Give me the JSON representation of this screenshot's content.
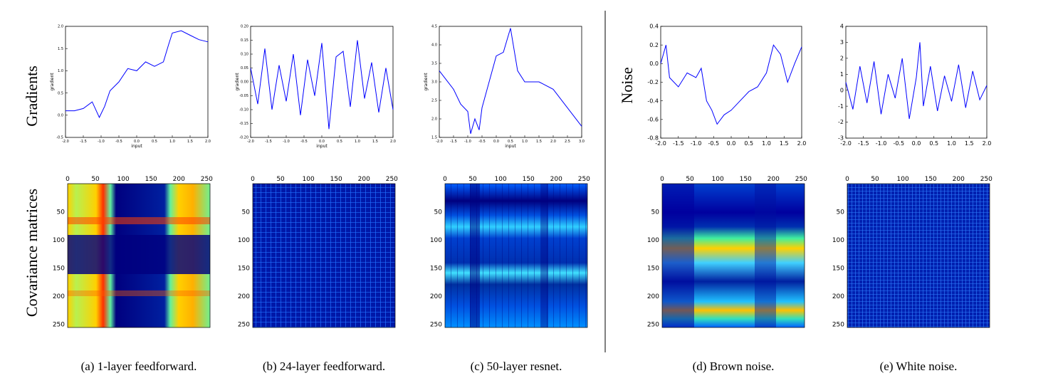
{
  "row_labels": {
    "top_left": "Gradients",
    "bottom_left": "Covariance matrices",
    "top_right": "Noise"
  },
  "captions": [
    "(a) 1-layer feedforward.",
    "(b) 24-layer feedforward.",
    "(c) 50-layer resnet.",
    "(d) Brown noise.",
    "(e) White noise."
  ],
  "colors": {
    "line": "#0000ff",
    "heat_low": "#00007f",
    "heat_high": "#ff0000"
  },
  "chart_data": [
    {
      "type": "line",
      "panel": "a-top",
      "xlabel": "input",
      "ylabel": "gradient",
      "xlim": [
        -2.0,
        2.0
      ],
      "ylim": [
        -0.5,
        2.0
      ],
      "xticks": [
        "-2.0",
        "-1.5",
        "-1.0",
        "-0.5",
        "0.0",
        "0.5",
        "1.0",
        "1.5",
        "2.0"
      ],
      "yticks": [
        "-0.5",
        "0.0",
        "0.5",
        "1.0",
        "1.5",
        "2.0"
      ],
      "x": [
        -2.0,
        -1.75,
        -1.5,
        -1.25,
        -1.05,
        -0.9,
        -0.75,
        -0.5,
        -0.25,
        0.0,
        0.25,
        0.5,
        0.75,
        0.9,
        1.0,
        1.25,
        1.5,
        1.75,
        2.0
      ],
      "y": [
        0.1,
        0.1,
        0.15,
        0.3,
        -0.05,
        0.2,
        0.55,
        0.75,
        1.05,
        1.0,
        1.2,
        1.1,
        1.2,
        1.6,
        1.85,
        1.9,
        1.8,
        1.7,
        1.65
      ]
    },
    {
      "type": "line",
      "panel": "b-top",
      "xlabel": "input",
      "ylabel": "gradient",
      "xlim": [
        -2.0,
        2.0
      ],
      "ylim": [
        -0.2,
        0.2
      ],
      "xticks": [
        "-2.0",
        "-1.5",
        "-1.0",
        "-0.5",
        "0.0",
        "0.5",
        "1.0",
        "1.5",
        "2.0"
      ],
      "yticks": [
        "-0.20",
        "-0.15",
        "-0.10",
        "-0.05",
        "0.00",
        "0.05",
        "0.10",
        "0.15",
        "0.20"
      ],
      "x": [
        -2.0,
        -1.8,
        -1.6,
        -1.4,
        -1.2,
        -1.0,
        -0.8,
        -0.6,
        -0.4,
        -0.2,
        0.0,
        0.2,
        0.4,
        0.6,
        0.8,
        1.0,
        1.2,
        1.4,
        1.6,
        1.8,
        2.0
      ],
      "y": [
        0.05,
        -0.08,
        0.12,
        -0.1,
        0.06,
        -0.07,
        0.1,
        -0.12,
        0.08,
        -0.05,
        0.14,
        -0.17,
        0.09,
        0.11,
        -0.09,
        0.15,
        -0.06,
        0.07,
        -0.11,
        0.05,
        -0.1
      ]
    },
    {
      "type": "line",
      "panel": "c-top",
      "xlabel": "input",
      "ylabel": "gradient",
      "xlim": [
        -2.0,
        3.0
      ],
      "ylim": [
        1.5,
        4.5
      ],
      "xticks": [
        "-2.0",
        "-1.5",
        "-1.0",
        "-0.5",
        "0.0",
        "0.5",
        "1.0",
        "1.5",
        "2.0",
        "2.5",
        "3.0"
      ],
      "yticks": [
        "1.5",
        "2.0",
        "2.5",
        "3.0",
        "3.5",
        "4.0",
        "4.5"
      ],
      "x": [
        -2.0,
        -1.5,
        -1.25,
        -1.0,
        -0.9,
        -0.75,
        -0.6,
        -0.5,
        -0.25,
        0.0,
        0.25,
        0.5,
        0.75,
        1.0,
        1.5,
        2.0,
        2.5,
        3.0
      ],
      "y": [
        3.3,
        2.8,
        2.4,
        2.2,
        1.6,
        2.0,
        1.7,
        2.3,
        3.0,
        3.7,
        3.8,
        4.45,
        3.3,
        3.0,
        3.0,
        2.8,
        2.3,
        1.8
      ]
    },
    {
      "type": "line",
      "panel": "d-top",
      "xlim": [
        -2.0,
        2.0
      ],
      "ylim": [
        -0.8,
        0.4
      ],
      "xticks": [
        "-2.0",
        "-1.5",
        "-1.0",
        "-0.5",
        "0.0",
        "0.5",
        "1.0",
        "1.5",
        "2.0"
      ],
      "yticks": [
        "-0.8",
        "-0.6",
        "-0.4",
        "-0.2",
        "0.0",
        "0.2",
        "0.4"
      ],
      "x": [
        -2.0,
        -1.85,
        -1.75,
        -1.5,
        -1.25,
        -1.0,
        -0.85,
        -0.7,
        -0.55,
        -0.4,
        -0.2,
        0.0,
        0.25,
        0.5,
        0.75,
        1.0,
        1.2,
        1.4,
        1.6,
        1.8,
        2.0
      ],
      "y": [
        0.0,
        0.2,
        -0.15,
        -0.25,
        -0.1,
        -0.15,
        -0.05,
        -0.4,
        -0.5,
        -0.65,
        -0.55,
        -0.5,
        -0.4,
        -0.3,
        -0.25,
        -0.1,
        0.2,
        0.1,
        -0.2,
        0.0,
        0.18
      ]
    },
    {
      "type": "line",
      "panel": "e-top",
      "xlim": [
        -2.0,
        2.0
      ],
      "ylim": [
        -3,
        4
      ],
      "xticks": [
        "-2.0",
        "-1.5",
        "-1.0",
        "-0.5",
        "0.0",
        "0.5",
        "1.0",
        "1.5",
        "2.0"
      ],
      "yticks": [
        "-3",
        "-2",
        "-1",
        "0",
        "1",
        "2",
        "3",
        "4"
      ],
      "x": [
        -2.0,
        -1.8,
        -1.6,
        -1.4,
        -1.2,
        -1.0,
        -0.8,
        -0.6,
        -0.4,
        -0.2,
        0.0,
        0.1,
        0.2,
        0.4,
        0.6,
        0.8,
        1.0,
        1.2,
        1.4,
        1.6,
        1.8,
        2.0
      ],
      "y": [
        0.5,
        -1.2,
        1.5,
        -0.8,
        1.8,
        -1.5,
        1.0,
        -0.5,
        2.0,
        -1.8,
        0.8,
        3.0,
        -1.0,
        1.5,
        -1.3,
        0.9,
        -0.7,
        1.6,
        -1.1,
        1.2,
        -0.6,
        0.3
      ]
    },
    {
      "type": "heatmap",
      "panel": "a-bottom",
      "xticks": [
        "0",
        "50",
        "100",
        "150",
        "200",
        "250"
      ],
      "yticks": [
        "50",
        "100",
        "150",
        "200",
        "250"
      ]
    },
    {
      "type": "heatmap",
      "panel": "b-bottom",
      "xticks": [
        "0",
        "50",
        "100",
        "150",
        "200",
        "250"
      ],
      "yticks": [
        "50",
        "100",
        "150",
        "200",
        "250"
      ]
    },
    {
      "type": "heatmap",
      "panel": "c-bottom",
      "xticks": [
        "0",
        "50",
        "100",
        "150",
        "200",
        "250"
      ],
      "yticks": [
        "50",
        "100",
        "150",
        "200",
        "250"
      ]
    },
    {
      "type": "heatmap",
      "panel": "d-bottom",
      "xticks": [
        "0",
        "50",
        "100",
        "150",
        "200",
        "250"
      ],
      "yticks": [
        "50",
        "100",
        "150",
        "200",
        "250"
      ]
    },
    {
      "type": "heatmap",
      "panel": "e-bottom",
      "xticks": [
        "0",
        "50",
        "100",
        "150",
        "200",
        "250"
      ],
      "yticks": [
        "50",
        "100",
        "150",
        "200",
        "250"
      ]
    }
  ]
}
